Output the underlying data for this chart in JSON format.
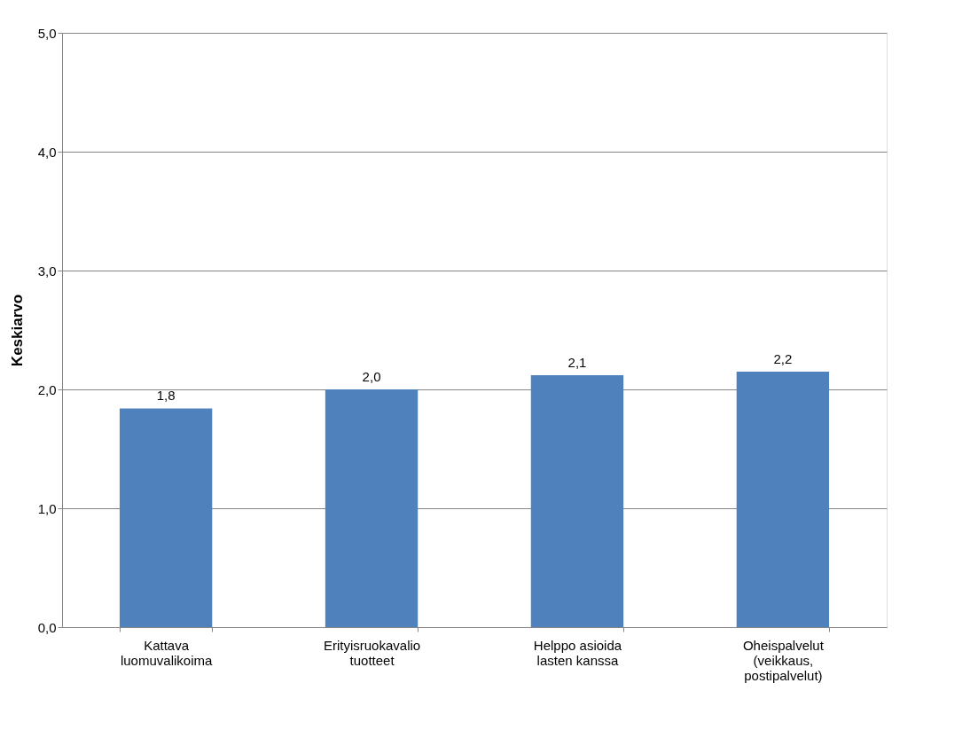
{
  "chart_data": {
    "type": "bar",
    "ylabel": "Keskiarvo",
    "categories": [
      "Kattava luomuvalikoima",
      "Erityisruokavalio tuotteet",
      "Helppo asioida lasten kanssa",
      "Oheispalvelut (veikkaus, postipalvelut)"
    ],
    "values": [
      1.84,
      2.0,
      2.12,
      2.15
    ],
    "value_labels": [
      "1,8",
      "2,0",
      "2,1",
      "2,2"
    ],
    "color": "#4f81bd",
    "ylim": [
      0,
      5
    ],
    "yticks": [
      {
        "value": 0,
        "label": "0,0"
      },
      {
        "value": 1,
        "label": "1,0"
      },
      {
        "value": 2,
        "label": "2,0"
      },
      {
        "value": 3,
        "label": "3,0"
      },
      {
        "value": 4,
        "label": "4,0"
      },
      {
        "value": 5,
        "label": "5,0"
      }
    ],
    "grid": "y"
  }
}
